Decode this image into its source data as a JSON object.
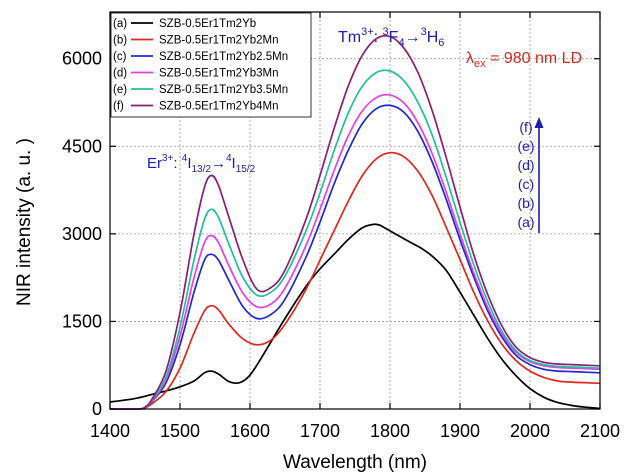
{
  "chart_data": {
    "type": "line",
    "xlabel": "Wavelength (nm)",
    "ylabel": "NIR intensity (a. u. )",
    "xlim": [
      1400,
      2100
    ],
    "ylim": [
      0,
      6800
    ],
    "xticks": [
      1400,
      1500,
      1600,
      1700,
      1800,
      1900,
      2000,
      2100
    ],
    "yticks": [
      0,
      1500,
      3000,
      4500,
      6000
    ],
    "grid": true,
    "legend_position": "top-left",
    "series": [
      {
        "name": "SZB-0.5Er1Tm2Yb",
        "tag": "(a)",
        "color": "#000000",
        "x": [
          1400,
          1420,
          1440,
          1460,
          1480,
          1500,
          1520,
          1535,
          1545,
          1555,
          1570,
          1585,
          1600,
          1620,
          1650,
          1680,
          1700,
          1720,
          1740,
          1760,
          1775,
          1785,
          1800,
          1815,
          1830,
          1845,
          1860,
          1880,
          1900,
          1920,
          1940,
          1960,
          1980,
          2000,
          2020,
          2040,
          2060,
          2080,
          2100
        ],
        "y": [
          120,
          150,
          190,
          250,
          310,
          380,
          480,
          620,
          650,
          600,
          470,
          450,
          580,
          950,
          1550,
          2100,
          2400,
          2650,
          2900,
          3100,
          3160,
          3150,
          3050,
          2950,
          2850,
          2750,
          2620,
          2380,
          2000,
          1600,
          1200,
          850,
          570,
          350,
          200,
          110,
          60,
          30,
          10
        ]
      },
      {
        "name": "SZB-0.5Er1Tm2Yb2Mn",
        "tag": "(b)",
        "color": "#e3261c",
        "x": [
          1400,
          1440,
          1450,
          1460,
          1480,
          1500,
          1520,
          1535,
          1545,
          1555,
          1570,
          1590,
          1610,
          1630,
          1650,
          1680,
          1700,
          1720,
          1740,
          1760,
          1780,
          1800,
          1820,
          1840,
          1860,
          1880,
          1900,
          1920,
          1940,
          1960,
          1980,
          2000,
          2020,
          2040,
          2060,
          2080,
          2100
        ],
        "y": [
          0,
          0,
          20,
          90,
          300,
          700,
          1300,
          1680,
          1770,
          1700,
          1450,
          1200,
          1100,
          1180,
          1450,
          2050,
          2550,
          3050,
          3550,
          3990,
          4280,
          4390,
          4320,
          4070,
          3660,
          3120,
          2560,
          1990,
          1500,
          1110,
          830,
          650,
          540,
          480,
          460,
          450,
          440
        ]
      },
      {
        "name": "SZB-0.5Er1Tm2Yb2.5Mn",
        "tag": "(c)",
        "color": "#1c28d6",
        "x": [
          1400,
          1440,
          1450,
          1460,
          1480,
          1500,
          1520,
          1535,
          1545,
          1555,
          1570,
          1590,
          1610,
          1630,
          1650,
          1680,
          1700,
          1720,
          1740,
          1760,
          1780,
          1800,
          1820,
          1840,
          1860,
          1880,
          1900,
          1920,
          1940,
          1960,
          1980,
          2000,
          2020,
          2040,
          2060,
          2080,
          2100
        ],
        "y": [
          0,
          0,
          30,
          130,
          450,
          1100,
          2000,
          2550,
          2650,
          2550,
          2200,
          1750,
          1550,
          1620,
          1880,
          2600,
          3200,
          3850,
          4420,
          4880,
          5140,
          5200,
          5080,
          4750,
          4240,
          3600,
          2900,
          2250,
          1670,
          1230,
          920,
          760,
          680,
          650,
          640,
          630,
          620
        ]
      },
      {
        "name": "SZB-0.5Er1Tm2Yb3Mn",
        "tag": "(d)",
        "color": "#e83ee4",
        "x": [
          1400,
          1440,
          1450,
          1460,
          1480,
          1500,
          1520,
          1535,
          1545,
          1555,
          1570,
          1590,
          1610,
          1630,
          1650,
          1680,
          1700,
          1720,
          1740,
          1760,
          1780,
          1800,
          1820,
          1840,
          1860,
          1880,
          1900,
          1920,
          1940,
          1960,
          1980,
          2000,
          2020,
          2040,
          2060,
          2080,
          2100
        ],
        "y": [
          0,
          0,
          30,
          140,
          500,
          1250,
          2250,
          2850,
          2970,
          2850,
          2450,
          1980,
          1750,
          1800,
          2070,
          2800,
          3420,
          4080,
          4670,
          5100,
          5330,
          5380,
          5240,
          4900,
          4380,
          3720,
          3000,
          2320,
          1730,
          1280,
          970,
          810,
          740,
          710,
          700,
          690,
          680
        ]
      },
      {
        "name": "SZB-0.5Er1Tm2Yb3.5Mn",
        "tag": "(e)",
        "color": "#20c098",
        "x": [
          1400,
          1440,
          1450,
          1460,
          1480,
          1500,
          1520,
          1535,
          1545,
          1555,
          1570,
          1590,
          1610,
          1630,
          1650,
          1680,
          1700,
          1720,
          1740,
          1760,
          1780,
          1800,
          1820,
          1840,
          1860,
          1880,
          1900,
          1920,
          1940,
          1960,
          1980,
          2000,
          2020,
          2040,
          2060,
          2080,
          2100
        ],
        "y": [
          0,
          0,
          30,
          150,
          550,
          1400,
          2550,
          3250,
          3420,
          3280,
          2820,
          2250,
          1950,
          2000,
          2280,
          3050,
          3700,
          4420,
          5060,
          5520,
          5760,
          5790,
          5620,
          5250,
          4700,
          3980,
          3200,
          2460,
          1830,
          1330,
          1000,
          830,
          760,
          730,
          720,
          710,
          700
        ]
      },
      {
        "name": "SZB-0.5Er1Tm2Yb4Mn",
        "tag": "(f)",
        "color": "#8a1d7a",
        "x": [
          1400,
          1440,
          1450,
          1460,
          1480,
          1500,
          1520,
          1535,
          1545,
          1555,
          1570,
          1590,
          1610,
          1630,
          1650,
          1680,
          1700,
          1720,
          1740,
          1760,
          1780,
          1800,
          1820,
          1840,
          1860,
          1880,
          1900,
          1920,
          1940,
          1960,
          1980,
          2000,
          2020,
          2040,
          2060,
          2080,
          2100
        ],
        "y": [
          0,
          0,
          30,
          170,
          650,
          1650,
          3000,
          3800,
          4000,
          3830,
          3280,
          2550,
          2050,
          2080,
          2380,
          3250,
          4000,
          4800,
          5520,
          6050,
          6340,
          6380,
          6180,
          5760,
          5120,
          4320,
          3460,
          2630,
          1950,
          1420,
          1060,
          880,
          800,
          770,
          760,
          750,
          740
        ]
      }
    ],
    "annotations": {
      "er_prefix": "Er",
      "er_sup": "3+",
      "er_colon": ": ",
      "er_sup2": "4",
      "er_I1": "I",
      "er_sub1": "13/2",
      "er_arrow": "→",
      "er_sup3": "4",
      "er_I2": "I",
      "er_sub2": "15/2",
      "tm_prefix": "Tm",
      "tm_sup": "3+",
      "tm_colon": ": ",
      "tm_sup2": "3",
      "tm_F": "F",
      "tm_sub1": "4",
      "tm_arrow": "→",
      "tm_sup3": "3",
      "tm_H": "H",
      "tm_sub2": "6",
      "lambda": "λ",
      "lambda_sub": "ex",
      "lambda_rest": " = 980 nm LD",
      "stack": [
        "(f)",
        "(e)",
        "(d)",
        "(c)",
        "(b)",
        "(a)"
      ],
      "annot_blue": "#1c1cb4",
      "annot_red": "#d6281c"
    }
  }
}
